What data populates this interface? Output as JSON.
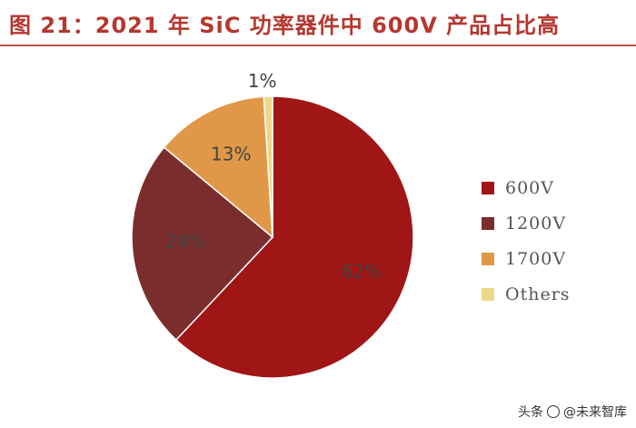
{
  "title": "图 21：2021 年 SiC 功率器件中 600V 产品占比高",
  "colors": {
    "title": "#b5372f",
    "rule": "#c0504d",
    "label": "#444444"
  },
  "watermark": {
    "prefix": "头条",
    "handle": "@未来智库"
  },
  "chart_data": {
    "type": "pie",
    "title": "",
    "legend_position": "right",
    "slices": [
      {
        "name": "600V",
        "value": 62,
        "label": "62%",
        "color": "#a01515"
      },
      {
        "name": "1200V",
        "value": 24,
        "label": "24%",
        "color": "#7b2d2d"
      },
      {
        "name": "1700V",
        "value": 13,
        "label": "13%",
        "color": "#e09848"
      },
      {
        "name": "Others",
        "value": 1,
        "label": "1%",
        "color": "#ecd889"
      }
    ]
  }
}
